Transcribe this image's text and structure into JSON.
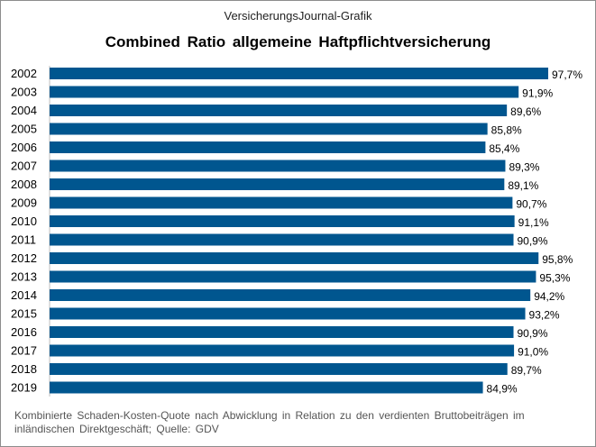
{
  "source": "VersicherungsJournal-Grafik",
  "footnote": "Kombinierte Schaden-Kosten-Quote nach Abwicklung in Relation zu den verdienten Bruttobeiträgen im inländischen Direktgeschäft; Quelle: GDV",
  "chart_data": {
    "type": "bar",
    "orientation": "horizontal",
    "title": "Combined Ratio allgemeine Haftpflichtversicherung",
    "categories": [
      "2002",
      "2003",
      "2004",
      "2005",
      "2006",
      "2007",
      "2008",
      "2009",
      "2010",
      "2011",
      "2012",
      "2013",
      "2014",
      "2015",
      "2016",
      "2017",
      "2018",
      "2019"
    ],
    "values": [
      97.7,
      91.9,
      89.6,
      85.8,
      85.4,
      89.3,
      89.1,
      90.7,
      91.1,
      90.9,
      95.8,
      95.3,
      94.2,
      93.2,
      90.9,
      91.0,
      89.7,
      84.9
    ],
    "labels": [
      "97,7%",
      "91,9%",
      "89,6%",
      "85,8%",
      "85,4%",
      "89,3%",
      "89,1%",
      "90,7%",
      "91,1%",
      "90,9%",
      "95,8%",
      "95,3%",
      "94,2%",
      "93,2%",
      "90,9%",
      "91,0%",
      "89,7%",
      "84,9%"
    ],
    "xlim": [
      0,
      97.7
    ],
    "bar_color": "#00568f",
    "grid": false,
    "legend": "none"
  }
}
